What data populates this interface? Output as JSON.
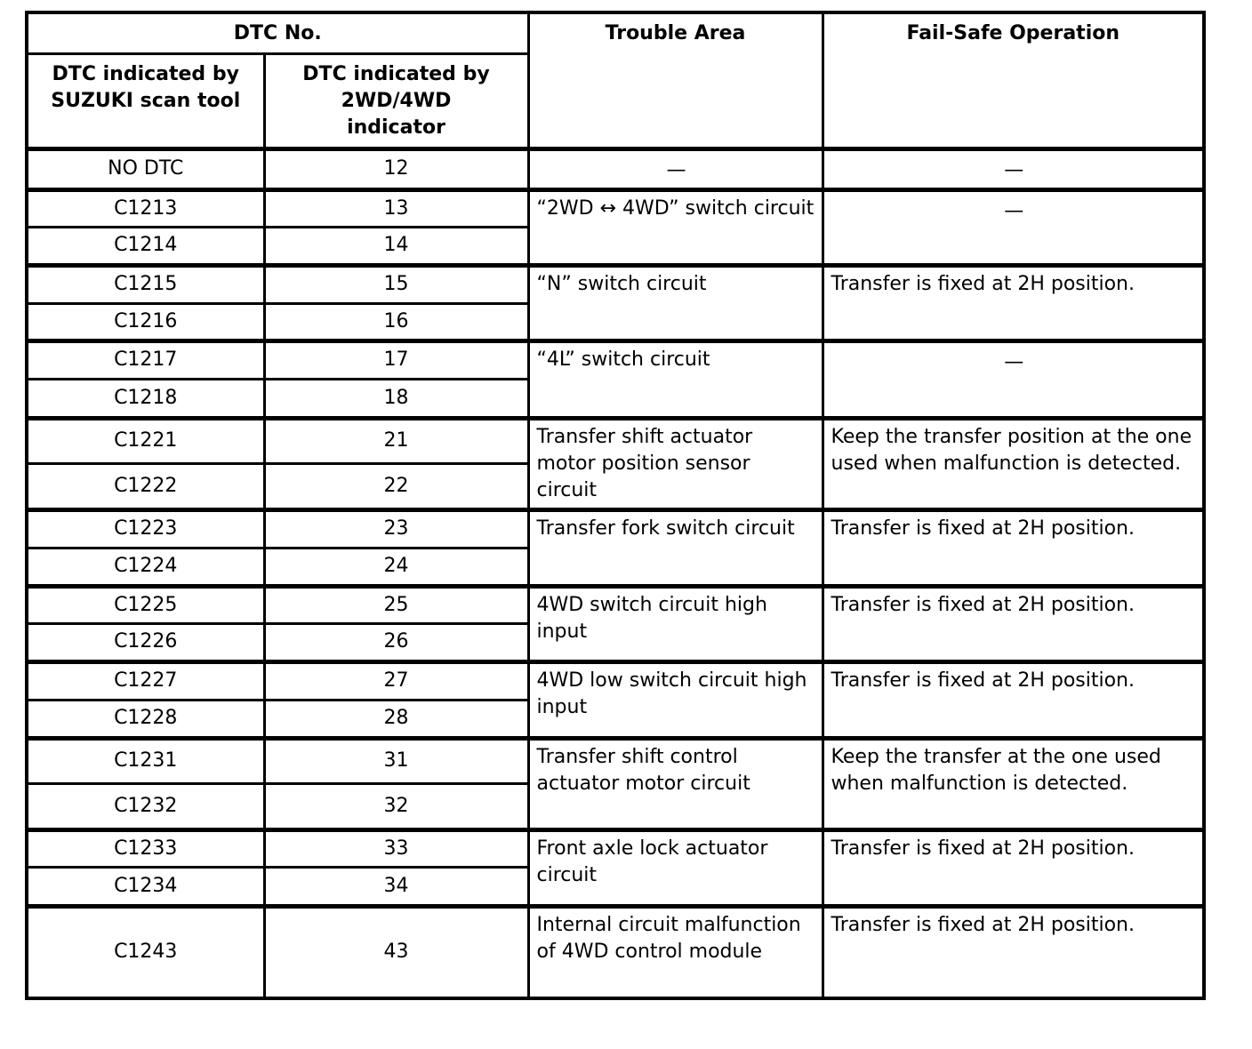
{
  "table": {
    "header": {
      "dtc_no": "DTC No.",
      "scan_tool": "DTC indicated by\nSUZUKI scan tool",
      "indicator": "DTC indicated by\n2WD/4WD\nindicator",
      "trouble_area": "Trouble Area",
      "fail_safe": "Fail-Safe Operation"
    },
    "dash": "—",
    "groups": [
      {
        "codes": [
          [
            "NO DTC",
            "12"
          ]
        ],
        "trouble": "—",
        "failsafe": "—"
      },
      {
        "codes": [
          [
            "C1213",
            "13"
          ],
          [
            "C1214",
            "14"
          ]
        ],
        "trouble": "“2WD ↔ 4WD” switch circuit",
        "failsafe": "—"
      },
      {
        "codes": [
          [
            "C1215",
            "15"
          ],
          [
            "C1216",
            "16"
          ]
        ],
        "trouble": "“N” switch circuit",
        "failsafe": "Transfer is fixed at 2H position."
      },
      {
        "codes": [
          [
            "C1217",
            "17"
          ],
          [
            "C1218",
            "18"
          ]
        ],
        "trouble": "“4L” switch circuit",
        "failsafe": "—"
      },
      {
        "codes": [
          [
            "C1221",
            "21"
          ],
          [
            "C1222",
            "22"
          ]
        ],
        "trouble": "Transfer shift actuator motor position sensor circuit",
        "failsafe": "Keep the transfer position at the one used when malfunction is detected."
      },
      {
        "codes": [
          [
            "C1223",
            "23"
          ],
          [
            "C1224",
            "24"
          ]
        ],
        "trouble": "Transfer fork switch circuit",
        "failsafe": "Transfer is fixed at 2H position."
      },
      {
        "codes": [
          [
            "C1225",
            "25"
          ],
          [
            "C1226",
            "26"
          ]
        ],
        "trouble": "4WD switch circuit high input",
        "failsafe": "Transfer is fixed at 2H position."
      },
      {
        "codes": [
          [
            "C1227",
            "27"
          ],
          [
            "C1228",
            "28"
          ]
        ],
        "trouble": "4WD low switch circuit high input",
        "failsafe": "Transfer is fixed at 2H position."
      },
      {
        "codes": [
          [
            "C1231",
            "31"
          ],
          [
            "C1232",
            "32"
          ]
        ],
        "trouble": "Transfer shift control actuator motor circuit",
        "failsafe": "Keep the transfer at the one used when malfunction is detected."
      },
      {
        "codes": [
          [
            "C1233",
            "33"
          ],
          [
            "C1234",
            "34"
          ]
        ],
        "trouble": "Front axle lock actuator circuit",
        "failsafe": "Transfer is fixed at 2H position."
      },
      {
        "codes": [
          [
            "C1243",
            "43"
          ]
        ],
        "trouble": "Internal circuit malfunction of 4WD control module",
        "failsafe": "Transfer is fixed at 2H position."
      }
    ]
  }
}
